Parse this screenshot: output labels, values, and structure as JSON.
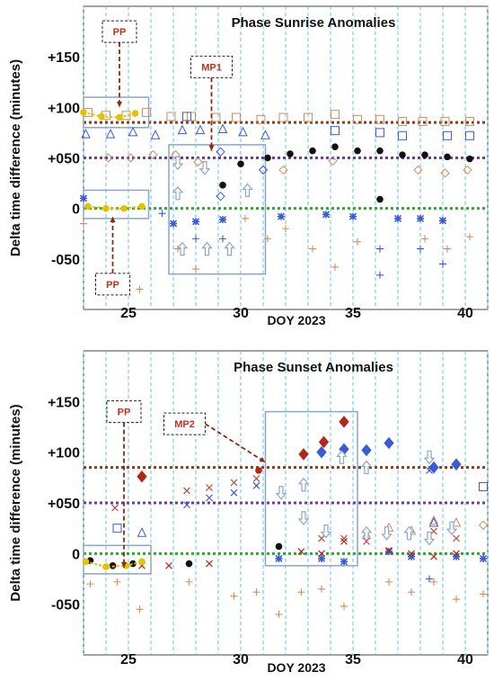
{
  "colors": {
    "sunrise_line": "#8b3a1a",
    "mid_line": "#6a3aa8",
    "zero_line": "#2ea82e",
    "grid": "#5ec8e6",
    "blue": "#3a5ad8",
    "red": "#c84a3a",
    "orange": "#d88a5a",
    "box": "#8aa6c8",
    "pp_curve": "#e0c400",
    "dark_red": "#b02818",
    "callout": "#c0311f"
  },
  "chart_data": [
    {
      "type": "scatter",
      "title": "Phase Sunrise Anomalies",
      "xlabel": "DOY 2023",
      "ylabel": "Delta time difference (minutes)",
      "xlim": [
        23,
        41
      ],
      "ylim": [
        -100,
        200
      ],
      "xticks": [
        25,
        30,
        35,
        40
      ],
      "yticks": [
        150,
        100,
        50,
        0,
        -50
      ],
      "ytick_labels": [
        "+150",
        "+100",
        "+050",
        "0",
        "-050"
      ],
      "grid": "vertical dashed",
      "reference_lines": [
        {
          "y": 85,
          "style": "dotted",
          "color_key": "sunrise_line"
        },
        {
          "y": 50,
          "style": "dotted",
          "color_key": "mid_line"
        },
        {
          "y": 0,
          "style": "dotted",
          "color_key": "zero_line"
        }
      ],
      "series": [
        {
          "marker": "square-open",
          "color_key": "orange",
          "x": [
            23.2,
            24.0,
            24.9,
            25.8,
            26.9,
            27.8,
            28.9,
            29.8,
            30.9,
            31.9,
            33.0,
            34.2,
            35.2,
            36.2,
            37.2,
            38.1,
            39.1,
            40.2
          ],
          "y": [
            95,
            92,
            92,
            95,
            91,
            91,
            90,
            90,
            88,
            90,
            90,
            93,
            88,
            88,
            86,
            86,
            86,
            86
          ]
        },
        {
          "marker": "square-open",
          "color_key": "blue",
          "x": [
            27.6,
            34.2,
            36.2,
            37.2,
            39.2,
            40.2
          ],
          "y": [
            91,
            77,
            75,
            72,
            72,
            72
          ]
        },
        {
          "marker": "triangle-open",
          "color_key": "blue",
          "x": [
            23.1,
            24.2,
            25.2,
            26.2,
            27.4,
            28.2,
            29.2,
            30.1,
            31.1
          ],
          "y": [
            73,
            73,
            75,
            72,
            77,
            77,
            78,
            75,
            72
          ]
        },
        {
          "marker": "diamond-open",
          "color_key": "blue",
          "x": [
            29.1,
            29.1,
            31.0
          ],
          "y": [
            56,
            12,
            38
          ]
        },
        {
          "marker": "diamond-open",
          "color_key": "orange",
          "x": [
            24.1,
            25.1,
            26.1,
            27.1,
            28.1,
            31.9,
            34.1,
            37.9,
            39.1,
            40.1
          ],
          "y": [
            50,
            50,
            53,
            53,
            46,
            38,
            47,
            38,
            35,
            38
          ]
        },
        {
          "marker": "circle-filled",
          "color_key": "black",
          "x": [
            29.2,
            30.0,
            31.2,
            32.2,
            33.2,
            34.2,
            35.2,
            36.2,
            37.2,
            38.2,
            39.2,
            40.2,
            36.2
          ],
          "y": [
            23,
            44,
            50,
            54,
            57,
            61,
            57,
            57,
            53,
            53,
            51,
            49,
            9
          ]
        },
        {
          "marker": "star",
          "color_key": "blue",
          "x": [
            23.0,
            27.0,
            28.0,
            29.2,
            31.8,
            33.8,
            35.0,
            37.0,
            38.0,
            39.0
          ],
          "y": [
            10,
            -15,
            -13,
            -11,
            -8,
            -6,
            -8,
            -10,
            -10,
            -12
          ]
        },
        {
          "marker": "plus",
          "color_key": "blue",
          "x": [
            26.5,
            28.0,
            29.2,
            36.2,
            36.2,
            38.0,
            39.0
          ],
          "y": [
            -5,
            -30,
            -30,
            -40,
            -66,
            -40,
            -55
          ]
        },
        {
          "marker": "plus",
          "color_key": "orange",
          "x": [
            23.0,
            25.5,
            27.2,
            28.0,
            30.2,
            31.2,
            32.0,
            33.2,
            34.2,
            35.2,
            38.2,
            39.2,
            40.2
          ],
          "y": [
            -15,
            -80,
            -40,
            -60,
            -10,
            -30,
            -20,
            -40,
            -58,
            -33,
            -30,
            -40,
            -28
          ]
        },
        {
          "marker": "circle-filled",
          "color_key": "pp_curve",
          "x": [
            23.0,
            23.8,
            24.6,
            25.3
          ],
          "y": [
            95,
            91,
            90,
            94
          ]
        },
        {
          "marker": "circle-filled",
          "color_key": "pp_curve",
          "x": [
            23.2,
            24.0,
            24.8,
            25.6
          ],
          "y": [
            2,
            0,
            0,
            2
          ]
        }
      ],
      "arrows": [
        {
          "x": 27.2,
          "y": 45,
          "dir": "down"
        },
        {
          "x": 28.4,
          "y": 40,
          "dir": "down"
        },
        {
          "x": 27.2,
          "y": 15,
          "dir": "up"
        },
        {
          "x": 30.3,
          "y": 18,
          "dir": "up"
        },
        {
          "x": 27.4,
          "y": -40,
          "dir": "up"
        },
        {
          "x": 28.5,
          "y": -40,
          "dir": "up"
        },
        {
          "x": 29.5,
          "y": -40,
          "dir": "up"
        }
      ],
      "highlight_boxes": [
        {
          "x0": 23.0,
          "x1": 25.9,
          "y0": 80,
          "y1": 110
        },
        {
          "x0": 23.0,
          "x1": 25.9,
          "y0": -10,
          "y1": 18
        },
        {
          "x0": 26.8,
          "x1": 31.1,
          "y0": -65,
          "y1": 63
        }
      ],
      "callouts": [
        {
          "label": "PP",
          "x": 24.6,
          "y": 175,
          "to_x": 24.6,
          "to_y": 100
        },
        {
          "label": "PP",
          "x": 24.3,
          "y": -75,
          "to_x": 24.3,
          "to_y": -8
        },
        {
          "label": "MP1",
          "x": 28.7,
          "y": 140,
          "to_x": 28.7,
          "to_y": 57
        }
      ]
    },
    {
      "type": "scatter",
      "title": "Phase Sunset Anomalies",
      "xlabel": "DOY 2023",
      "ylabel": "Delta time difference (minutes)",
      "xlim": [
        23,
        41
      ],
      "ylim": [
        -100,
        200
      ],
      "xticks": [
        25,
        30,
        35,
        40
      ],
      "yticks": [
        150,
        100,
        50,
        0,
        -50
      ],
      "ytick_labels": [
        "+150",
        "+100",
        "+050",
        "0",
        "-050"
      ],
      "grid": "vertical dashed",
      "reference_lines": [
        {
          "y": 85,
          "style": "dotted",
          "color_key": "sunrise_line"
        },
        {
          "y": 50,
          "style": "dotted",
          "color_key": "mid_line"
        },
        {
          "y": 0,
          "style": "dotted",
          "color_key": "zero_line"
        }
      ],
      "series": [
        {
          "marker": "diamond-filled",
          "color_key": "dark_red",
          "x": [
            25.6,
            32.8,
            33.7,
            34.6
          ],
          "y": [
            76,
            98,
            110,
            130
          ]
        },
        {
          "marker": "diamond-filled",
          "color_key": "blue",
          "x": [
            33.6,
            34.6,
            35.6,
            36.6,
            38.6,
            39.6
          ],
          "y": [
            100,
            103,
            102,
            109,
            85,
            88
          ]
        },
        {
          "marker": "circle-filled",
          "color_key": "dark_red",
          "x": [
            30.8
          ],
          "y": [
            82
          ]
        },
        {
          "marker": "square-open",
          "color_key": "blue",
          "x": [
            24.5,
            40.8
          ],
          "y": [
            25,
            66
          ]
        },
        {
          "marker": "triangle-open",
          "color_key": "blue",
          "x": [
            25.6,
            38.6
          ],
          "y": [
            20,
            30
          ]
        },
        {
          "marker": "triangle-open",
          "color_key": "orange",
          "x": [
            35.6,
            36.6,
            37.6,
            38.6,
            39.6
          ],
          "y": [
            18,
            25,
            22,
            32,
            30
          ]
        },
        {
          "marker": "x",
          "color_key": "red",
          "x": [
            24.4,
            27.6,
            28.6,
            29.7,
            30.7,
            33.6,
            34.6,
            35.6,
            38.6,
            39.6
          ],
          "y": [
            45,
            62,
            65,
            70,
            74,
            15,
            15,
            12,
            22,
            15
          ]
        },
        {
          "marker": "x",
          "color_key": "blue",
          "x": [
            27.6,
            28.6,
            29.7,
            30.7,
            38.4
          ],
          "y": [
            48,
            55,
            60,
            67,
            82
          ]
        },
        {
          "marker": "diamond-open",
          "color_key": "orange",
          "x": [
            40.8
          ],
          "y": [
            28
          ]
        },
        {
          "marker": "circle-filled",
          "color_key": "black",
          "x": [
            23.3,
            24.3,
            25.2,
            27.7,
            31.7
          ],
          "y": [
            -7,
            -12,
            -10,
            -10,
            7
          ]
        },
        {
          "marker": "star",
          "color_key": "blue",
          "x": [
            31.7,
            33.6,
            34.6,
            36.6,
            37.6,
            39.6,
            40.8
          ],
          "y": [
            -5,
            -5,
            -8,
            2,
            -3,
            -3,
            -5
          ]
        },
        {
          "marker": "x",
          "color_key": "dark_red",
          "x": [
            25.6,
            26.8,
            28.6,
            32.7,
            33.6,
            34.6,
            36.6,
            37.6,
            38.6,
            39.6
          ],
          "y": [
            -12,
            -12,
            -10,
            2,
            0,
            12,
            3,
            0,
            -3,
            0
          ]
        },
        {
          "marker": "plus",
          "color_key": "orange",
          "x": [
            23.3,
            24.5,
            25.5,
            27.7,
            29.7,
            30.7,
            31.7,
            32.7,
            33.6,
            34.6,
            36.6,
            37.6,
            38.6,
            39.6,
            40.8
          ],
          "y": [
            -30,
            -28,
            -55,
            -28,
            -42,
            -38,
            -60,
            -38,
            -35,
            -52,
            -28,
            -38,
            -28,
            -45,
            -40
          ]
        },
        {
          "marker": "plus",
          "color_key": "blue",
          "x": [
            38.4
          ],
          "y": [
            -25
          ]
        },
        {
          "marker": "circle-filled",
          "color_key": "pp_curve",
          "x": [
            23.1,
            24.0,
            24.9,
            25.6
          ],
          "y": [
            -8,
            -13,
            -12,
            -8
          ]
        }
      ],
      "arrows": [
        {
          "x": 31.8,
          "y": 60,
          "dir": "down"
        },
        {
          "x": 32.8,
          "y": 68,
          "dir": "up"
        },
        {
          "x": 32.8,
          "y": 35,
          "dir": "down"
        },
        {
          "x": 33.8,
          "y": 22,
          "dir": "down"
        },
        {
          "x": 34.5,
          "y": 95,
          "dir": "up"
        },
        {
          "x": 35.6,
          "y": 85,
          "dir": "up"
        },
        {
          "x": 35.6,
          "y": 20,
          "dir": "up"
        },
        {
          "x": 36.5,
          "y": 20,
          "dir": "down"
        },
        {
          "x": 37.5,
          "y": 20,
          "dir": "up"
        },
        {
          "x": 38.4,
          "y": 15,
          "dir": "down"
        },
        {
          "x": 38.4,
          "y": 95,
          "dir": "down"
        },
        {
          "x": 39.4,
          "y": 25,
          "dir": "down"
        }
      ],
      "highlight_boxes": [
        {
          "x0": 23.0,
          "x1": 26.0,
          "y0": -20,
          "y1": 8
        },
        {
          "x0": 31.1,
          "x1": 35.2,
          "y0": -12,
          "y1": 140
        }
      ],
      "callouts": [
        {
          "label": "PP",
          "x": 24.8,
          "y": 140,
          "to_x": 24.8,
          "to_y": -14
        },
        {
          "label": "MP2",
          "x": 27.5,
          "y": 128,
          "to_x": 31.1,
          "to_y": 90
        }
      ]
    }
  ]
}
